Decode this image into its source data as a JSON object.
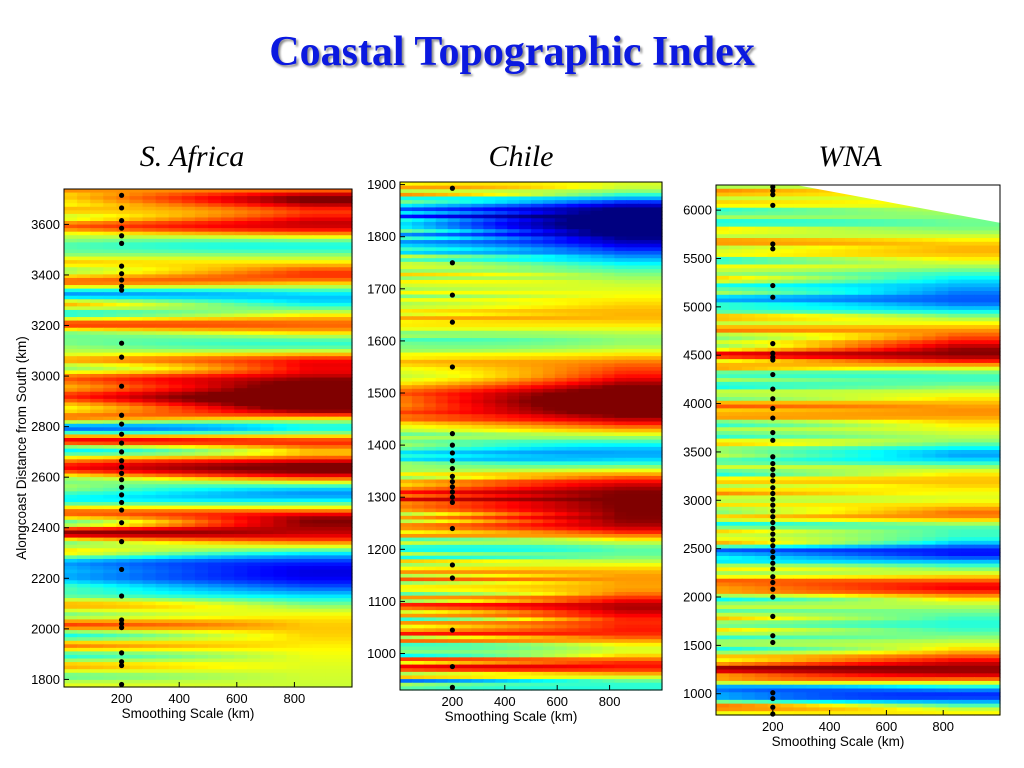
{
  "slide": {
    "title": "Coastal Topographic Index"
  },
  "chart_data": [
    {
      "type": "heatmap",
      "title": "S. Africa",
      "xlabel": "Smoothing Scale (km)",
      "ylabel": "Alongcoast Distance from South (km)",
      "x_ticks": [
        200,
        400,
        600,
        800
      ],
      "y_ticks": [
        1800,
        2000,
        2200,
        2400,
        2600,
        2800,
        3000,
        3200,
        3400,
        3600
      ],
      "xlim": [
        0,
        1000
      ],
      "ylim": [
        1770,
        3740
      ],
      "colormap": "jet",
      "color_range": [
        -1,
        1
      ],
      "bands": [
        {
          "y": 3700,
          "v": 0.9,
          "w": 25
        },
        {
          "y": 3600,
          "v": 0.75,
          "w": 35
        },
        {
          "y": 3520,
          "v": -0.4,
          "w": 25
        },
        {
          "y": 3400,
          "v": 0.55,
          "w": 30
        },
        {
          "y": 3310,
          "v": -0.5,
          "w": 30
        },
        {
          "y": 3200,
          "v": 0.45,
          "w": 30
        },
        {
          "y": 3130,
          "v": -0.35,
          "w": 25
        },
        {
          "y": 3060,
          "v": 0.5,
          "w": 25
        },
        {
          "y": 2960,
          "v": 0.95,
          "w": 45
        },
        {
          "y": 2880,
          "v": 0.85,
          "w": 35
        },
        {
          "y": 2790,
          "v": -0.55,
          "w": 30
        },
        {
          "y": 2740,
          "v": 0.8,
          "w": 25
        },
        {
          "y": 2700,
          "v": -0.45,
          "w": 25
        },
        {
          "y": 2640,
          "v": 1.0,
          "w": 40
        },
        {
          "y": 2540,
          "v": -0.65,
          "w": 30
        },
        {
          "y": 2440,
          "v": 0.6,
          "w": 25
        },
        {
          "y": 2370,
          "v": 0.9,
          "w": 40
        },
        {
          "y": 2220,
          "v": -0.95,
          "w": 80
        },
        {
          "y": 2040,
          "v": 0.3,
          "w": 70
        },
        {
          "y": 1880,
          "v": 0.05,
          "w": 80
        }
      ],
      "points": [
        {
          "x": 200,
          "y": 3715
        },
        {
          "x": 200,
          "y": 3665
        },
        {
          "x": 200,
          "y": 3615
        },
        {
          "x": 200,
          "y": 3585
        },
        {
          "x": 200,
          "y": 3555
        },
        {
          "x": 200,
          "y": 3525
        },
        {
          "x": 200,
          "y": 3435
        },
        {
          "x": 200,
          "y": 3405
        },
        {
          "x": 200,
          "y": 3380
        },
        {
          "x": 200,
          "y": 3355
        },
        {
          "x": 200,
          "y": 3340
        },
        {
          "x": 200,
          "y": 3130
        },
        {
          "x": 200,
          "y": 3075
        },
        {
          "x": 200,
          "y": 2960
        },
        {
          "x": 200,
          "y": 2845
        },
        {
          "x": 200,
          "y": 2810
        },
        {
          "x": 200,
          "y": 2770
        },
        {
          "x": 200,
          "y": 2735
        },
        {
          "x": 200,
          "y": 2700
        },
        {
          "x": 200,
          "y": 2665
        },
        {
          "x": 200,
          "y": 2640
        },
        {
          "x": 200,
          "y": 2615
        },
        {
          "x": 200,
          "y": 2590
        },
        {
          "x": 200,
          "y": 2560
        },
        {
          "x": 200,
          "y": 2530
        },
        {
          "x": 200,
          "y": 2500
        },
        {
          "x": 200,
          "y": 2470
        },
        {
          "x": 200,
          "y": 2420
        },
        {
          "x": 200,
          "y": 2345
        },
        {
          "x": 200,
          "y": 2235
        },
        {
          "x": 200,
          "y": 2130
        },
        {
          "x": 200,
          "y": 2035
        },
        {
          "x": 200,
          "y": 2020
        },
        {
          "x": 200,
          "y": 2005
        },
        {
          "x": 200,
          "y": 1905
        },
        {
          "x": 200,
          "y": 1870
        },
        {
          "x": 200,
          "y": 1855
        },
        {
          "x": 200,
          "y": 1780
        }
      ]
    },
    {
      "type": "heatmap",
      "title": "Chile",
      "xlabel": "Smoothing Scale (km)",
      "ylabel": "",
      "x_ticks": [
        200,
        400,
        600,
        800
      ],
      "y_ticks": [
        1000,
        1100,
        1200,
        1300,
        1400,
        1500,
        1600,
        1700,
        1800,
        1900
      ],
      "xlim": [
        0,
        1000
      ],
      "ylim": [
        930,
        1905
      ],
      "colormap": "jet",
      "color_range": [
        -1,
        1
      ],
      "bands": [
        {
          "y": 1890,
          "v": 0.4,
          "w": 15
        },
        {
          "y": 1845,
          "v": -1.0,
          "w": 30
        },
        {
          "y": 1790,
          "v": -0.75,
          "w": 35
        },
        {
          "y": 1720,
          "v": 0.1,
          "w": 30
        },
        {
          "y": 1640,
          "v": 0.35,
          "w": 25
        },
        {
          "y": 1600,
          "v": -0.3,
          "w": 25
        },
        {
          "y": 1560,
          "v": 0.4,
          "w": 20
        },
        {
          "y": 1500,
          "v": 0.7,
          "w": 25
        },
        {
          "y": 1460,
          "v": 0.75,
          "w": 30
        },
        {
          "y": 1420,
          "v": -0.2,
          "w": 20
        },
        {
          "y": 1380,
          "v": -0.65,
          "w": 20
        },
        {
          "y": 1300,
          "v": 0.9,
          "w": 35
        },
        {
          "y": 1240,
          "v": 0.5,
          "w": 20
        },
        {
          "y": 1200,
          "v": -0.4,
          "w": 20
        },
        {
          "y": 1150,
          "v": 0.35,
          "w": 25
        },
        {
          "y": 1090,
          "v": 0.7,
          "w": 15
        },
        {
          "y": 1040,
          "v": 0.6,
          "w": 20
        },
        {
          "y": 1005,
          "v": -0.45,
          "w": 15
        },
        {
          "y": 975,
          "v": 0.8,
          "w": 20
        },
        {
          "y": 945,
          "v": -0.55,
          "w": 15
        }
      ],
      "points": [
        {
          "x": 200,
          "y": 1893
        },
        {
          "x": 200,
          "y": 1750
        },
        {
          "x": 200,
          "y": 1688
        },
        {
          "x": 200,
          "y": 1636
        },
        {
          "x": 200,
          "y": 1550
        },
        {
          "x": 200,
          "y": 1422
        },
        {
          "x": 200,
          "y": 1400
        },
        {
          "x": 200,
          "y": 1385
        },
        {
          "x": 200,
          "y": 1370
        },
        {
          "x": 200,
          "y": 1355
        },
        {
          "x": 200,
          "y": 1340
        },
        {
          "x": 200,
          "y": 1330
        },
        {
          "x": 200,
          "y": 1320
        },
        {
          "x": 200,
          "y": 1310
        },
        {
          "x": 200,
          "y": 1300
        },
        {
          "x": 200,
          "y": 1290
        },
        {
          "x": 200,
          "y": 1240
        },
        {
          "x": 200,
          "y": 1170
        },
        {
          "x": 200,
          "y": 1145
        },
        {
          "x": 200,
          "y": 1045
        },
        {
          "x": 200,
          "y": 975
        },
        {
          "x": 200,
          "y": 935
        }
      ]
    },
    {
      "type": "heatmap",
      "title": "WNA",
      "xlabel": "Smoothing Scale (km)",
      "ylabel": "",
      "x_ticks": [
        200,
        400,
        600,
        800
      ],
      "y_ticks": [
        1000,
        1500,
        2000,
        2500,
        3000,
        3500,
        4000,
        4500,
        5000,
        5500,
        6000
      ],
      "xlim": [
        0,
        1000
      ],
      "ylim": [
        780,
        6260
      ],
      "colormap": "jet",
      "color_range": [
        -1,
        1
      ],
      "bands": [
        {
          "y": 6100,
          "v": 0.1,
          "w": 120
        },
        {
          "y": 5850,
          "v": -0.2,
          "w": 100
        },
        {
          "y": 5600,
          "v": 0.3,
          "w": 100
        },
        {
          "y": 5220,
          "v": -0.45,
          "w": 110
        },
        {
          "y": 5040,
          "v": -0.5,
          "w": 80
        },
        {
          "y": 4730,
          "v": 0.3,
          "w": 80
        },
        {
          "y": 4520,
          "v": 0.85,
          "w": 90
        },
        {
          "y": 4280,
          "v": -0.3,
          "w": 70
        },
        {
          "y": 3920,
          "v": 0.35,
          "w": 100
        },
        {
          "y": 3470,
          "v": -0.55,
          "w": 70
        },
        {
          "y": 3200,
          "v": 0.25,
          "w": 80
        },
        {
          "y": 2850,
          "v": 0.45,
          "w": 70
        },
        {
          "y": 2720,
          "v": -0.3,
          "w": 60
        },
        {
          "y": 2460,
          "v": -0.85,
          "w": 80
        },
        {
          "y": 2100,
          "v": 0.65,
          "w": 70
        },
        {
          "y": 1720,
          "v": -0.3,
          "w": 90
        },
        {
          "y": 1230,
          "v": 0.9,
          "w": 120
        },
        {
          "y": 1000,
          "v": -1.0,
          "w": 90
        },
        {
          "y": 830,
          "v": 0.3,
          "w": 60
        }
      ],
      "points": [
        {
          "x": 200,
          "y": 6240
        },
        {
          "x": 200,
          "y": 6200
        },
        {
          "x": 200,
          "y": 6160
        },
        {
          "x": 200,
          "y": 6050
        },
        {
          "x": 200,
          "y": 5650
        },
        {
          "x": 200,
          "y": 5600
        },
        {
          "x": 200,
          "y": 5220
        },
        {
          "x": 200,
          "y": 5100
        },
        {
          "x": 200,
          "y": 4620
        },
        {
          "x": 200,
          "y": 4520
        },
        {
          "x": 200,
          "y": 4480
        },
        {
          "x": 200,
          "y": 4450
        },
        {
          "x": 200,
          "y": 4300
        },
        {
          "x": 200,
          "y": 4150
        },
        {
          "x": 200,
          "y": 4050
        },
        {
          "x": 200,
          "y": 3950
        },
        {
          "x": 200,
          "y": 3850
        },
        {
          "x": 200,
          "y": 3700
        },
        {
          "x": 200,
          "y": 3620
        },
        {
          "x": 200,
          "y": 3450
        },
        {
          "x": 200,
          "y": 3380
        },
        {
          "x": 200,
          "y": 3320
        },
        {
          "x": 200,
          "y": 3260
        },
        {
          "x": 200,
          "y": 3200
        },
        {
          "x": 200,
          "y": 3130
        },
        {
          "x": 200,
          "y": 3070
        },
        {
          "x": 200,
          "y": 3010
        },
        {
          "x": 200,
          "y": 2950
        },
        {
          "x": 200,
          "y": 2890
        },
        {
          "x": 200,
          "y": 2830
        },
        {
          "x": 200,
          "y": 2770
        },
        {
          "x": 200,
          "y": 2710
        },
        {
          "x": 200,
          "y": 2650
        },
        {
          "x": 200,
          "y": 2590
        },
        {
          "x": 200,
          "y": 2530
        },
        {
          "x": 200,
          "y": 2470
        },
        {
          "x": 200,
          "y": 2410
        },
        {
          "x": 200,
          "y": 2350
        },
        {
          "x": 200,
          "y": 2290
        },
        {
          "x": 200,
          "y": 2210
        },
        {
          "x": 200,
          "y": 2150
        },
        {
          "x": 200,
          "y": 2080
        },
        {
          "x": 200,
          "y": 2000
        },
        {
          "x": 200,
          "y": 1800
        },
        {
          "x": 200,
          "y": 1600
        },
        {
          "x": 200,
          "y": 1530
        },
        {
          "x": 200,
          "y": 1010
        },
        {
          "x": 200,
          "y": 950
        },
        {
          "x": 200,
          "y": 860
        },
        {
          "x": 200,
          "y": 790
        }
      ]
    }
  ]
}
